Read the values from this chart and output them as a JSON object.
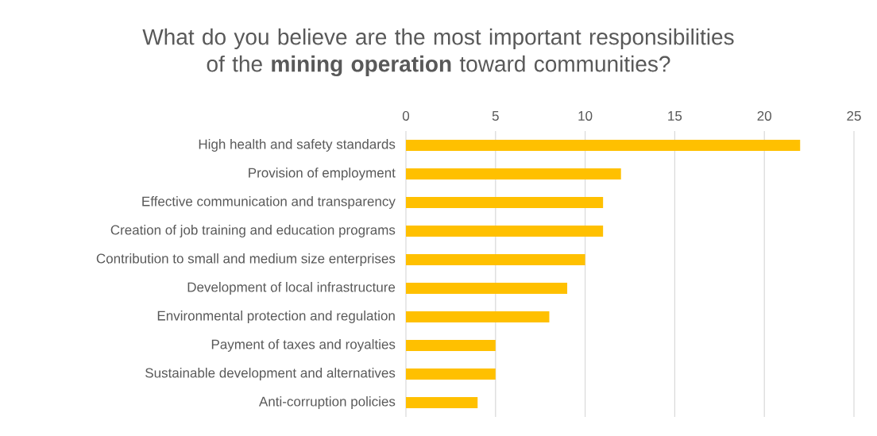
{
  "chart_data": {
    "type": "bar",
    "orientation": "horizontal",
    "title": "What do you believe are the most important responsibilities of the **mining operation** toward communities?",
    "categories": [
      "High health and safety standards",
      "Provision of employment",
      "Effective communication and transparency",
      "Creation of job training and education programs",
      "Contribution to small and medium size enterprises",
      "Development of local infrastructure",
      "Environmental protection and regulation",
      "Payment of taxes and royalties",
      "Sustainable development and alternatives",
      "Anti-corruption policies"
    ],
    "values": [
      22,
      12,
      11,
      11,
      10,
      9,
      8,
      5,
      5,
      4
    ],
    "color": "#ffc000",
    "xlim": [
      0,
      25
    ],
    "xticks": [
      0,
      5,
      10,
      15,
      20,
      25
    ],
    "grid": "x"
  }
}
